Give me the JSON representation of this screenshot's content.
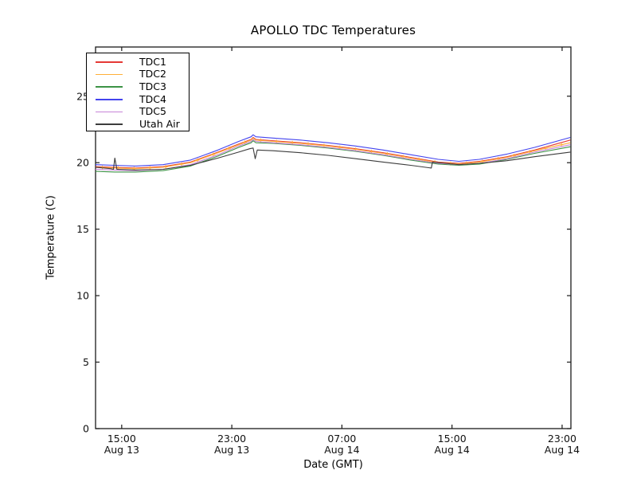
{
  "figure": {
    "title": "APOLLO TDC Temperatures",
    "background_color": "#ffffff",
    "frame_color": "#1a1a1a",
    "text_color": "#000000"
  },
  "chart_data": {
    "type": "line",
    "title": "APOLLO TDC Temperatures",
    "xlabel": "Date (GMT)",
    "ylabel": "Temperature (C)",
    "x_unit": "hours since Aug 13 00:00 GMT",
    "xlim": [
      13.1,
      47.64
    ],
    "ylim": [
      0,
      28.7
    ],
    "grid": false,
    "legend_position": "upper left",
    "yticks": [
      0,
      5,
      10,
      15,
      20,
      25
    ],
    "xticks": [
      {
        "hour": 15,
        "time": "15:00",
        "date": "Aug 13"
      },
      {
        "hour": 23,
        "time": "23:00",
        "date": "Aug 13"
      },
      {
        "hour": 31,
        "time": "07:00",
        "date": "Aug 14"
      },
      {
        "hour": 39,
        "time": "15:00",
        "date": "Aug 14"
      },
      {
        "hour": 47,
        "time": "23:00",
        "date": "Aug 14"
      }
    ],
    "shared_x": [
      13.1,
      14.5,
      16,
      18,
      20,
      22,
      23.5,
      24.4,
      24.55,
      24.75,
      26,
      28,
      30,
      32,
      34,
      36,
      38,
      39.5,
      41,
      43,
      45,
      47.6
    ],
    "series": [
      {
        "name": "TDC1",
        "color": "#e53935",
        "values": [
          19.7,
          19.65,
          19.6,
          19.7,
          20.05,
          20.8,
          21.4,
          21.75,
          21.9,
          21.75,
          21.65,
          21.5,
          21.3,
          21.05,
          20.75,
          20.4,
          20.05,
          19.95,
          20.1,
          20.45,
          20.95,
          21.7
        ]
      },
      {
        "name": "TDC2",
        "color": "#ffaf38",
        "marker": "+",
        "marker_interval": 1.15,
        "values": [
          19.65,
          19.6,
          19.55,
          19.65,
          20.0,
          20.75,
          21.35,
          21.7,
          21.85,
          21.7,
          21.6,
          21.45,
          21.25,
          21.0,
          20.7,
          20.35,
          20.0,
          19.9,
          20.05,
          20.4,
          20.9,
          21.5
        ]
      },
      {
        "name": "TDC3",
        "color": "#3d9346",
        "values": [
          19.35,
          19.3,
          19.3,
          19.4,
          19.75,
          20.5,
          21.15,
          21.5,
          21.65,
          21.5,
          21.45,
          21.3,
          21.1,
          20.85,
          20.55,
          20.2,
          19.9,
          19.8,
          19.9,
          20.25,
          20.7,
          21.2
        ]
      },
      {
        "name": "TDC4",
        "color": "#4444ee",
        "values": [
          19.85,
          19.8,
          19.75,
          19.85,
          20.2,
          20.95,
          21.6,
          21.95,
          22.1,
          21.95,
          21.85,
          21.7,
          21.5,
          21.25,
          20.95,
          20.6,
          20.25,
          20.1,
          20.25,
          20.65,
          21.15,
          21.9
        ]
      },
      {
        "name": "TDC5",
        "color": "#c784d8",
        "values": [
          19.5,
          19.45,
          19.4,
          19.5,
          19.85,
          20.6,
          21.25,
          21.6,
          21.75,
          21.6,
          21.5,
          21.35,
          21.15,
          20.9,
          20.6,
          20.25,
          19.95,
          19.85,
          19.95,
          20.3,
          20.8,
          21.35
        ]
      },
      {
        "name": "Utah Air",
        "color": "#3c3c3c",
        "x": [
          13.1,
          14.2,
          14.4,
          14.5,
          14.65,
          16,
          18,
          20,
          22,
          23.5,
          24.3,
          24.55,
          24.7,
          24.85,
          26,
          28,
          30,
          32,
          34,
          36,
          37.3,
          37.5,
          37.58,
          38.5,
          39.5,
          41,
          43,
          45,
          47.6
        ],
        "values": [
          19.65,
          19.55,
          19.5,
          20.35,
          19.5,
          19.45,
          19.5,
          19.8,
          20.35,
          20.8,
          21.05,
          21.1,
          20.3,
          20.95,
          20.9,
          20.75,
          20.55,
          20.3,
          20.05,
          19.8,
          19.62,
          19.6,
          20.05,
          19.95,
          19.85,
          19.95,
          20.15,
          20.45,
          20.8
        ]
      }
    ]
  }
}
